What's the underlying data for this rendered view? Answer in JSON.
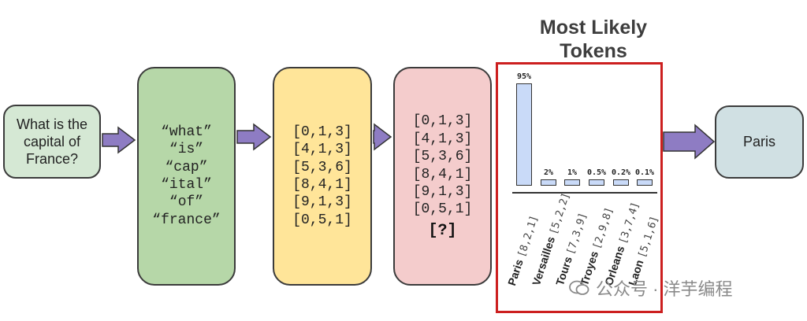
{
  "question": "What is the capital of France?",
  "tokens": [
    "“what”",
    "“is”",
    "“cap”",
    "“ital”",
    "“of”",
    "“france”"
  ],
  "token_ids": [
    "[0,1,3]",
    "[4,1,3]",
    "[5,3,6]",
    "[8,4,1]",
    "[9,1,3]",
    "[0,5,1]"
  ],
  "token_ids_next": [
    "[0,1,3]",
    "[4,1,3]",
    "[5,3,6]",
    "[8,4,1]",
    "[9,1,3]",
    "[0,5,1]"
  ],
  "next_placeholder": "[?]",
  "answer": "Paris",
  "panel_title_line1": "Most Likely",
  "panel_title_line2": "Tokens",
  "watermark": "公众号 · 洋芋编程",
  "colors": {
    "question_fill": "#d5e8d4",
    "tokens_fill": "#b6d7a8",
    "ids_fill": "#ffe599",
    "next_fill": "#f4cccc",
    "answer_fill": "#d0e0e3",
    "arrow_fill": "#8e7cc3",
    "panel_border": "#cc1f1f",
    "bar_fill": "#c9daf8"
  },
  "chart_data": {
    "type": "bar",
    "categories": [
      "Paris",
      "Versailles",
      "Tours",
      "Troyes",
      "Orleans",
      "Laon"
    ],
    "codes": [
      "[8,2,1]",
      "[5,2,2]",
      "[7,3,9]",
      "[2,9,8]",
      "[3,7,4]",
      "[5,1,6]"
    ],
    "values": [
      95,
      2,
      1,
      0.5,
      0.2,
      0.1
    ],
    "value_labels": [
      "95%",
      "2%",
      "1%",
      "0.5%",
      "0.2%",
      "0.1%"
    ],
    "title": "Most Likely Tokens"
  }
}
